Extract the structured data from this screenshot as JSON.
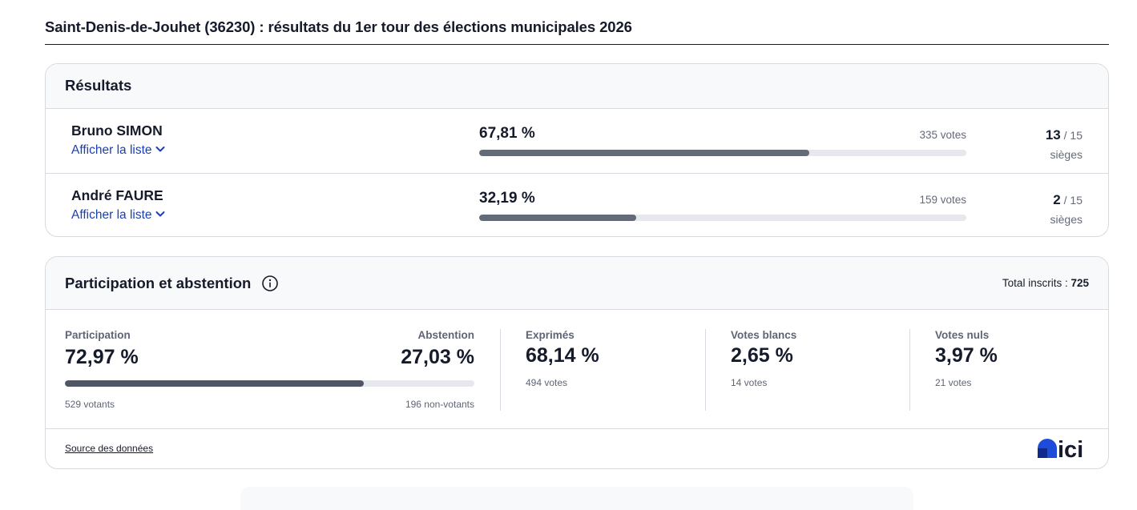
{
  "page": {
    "title": "Saint-Denis-de-Jouhet (36230) : résultats du 1er tour des élections municipales 2026"
  },
  "results": {
    "title": "Résultats",
    "candidates": [
      {
        "name": "Bruno SIMON",
        "link": "Afficher la liste",
        "percent_label": "67,81 %",
        "percent": 67.81,
        "votes": "335 votes",
        "seats": "13",
        "seats_total": "/ 15",
        "seats_label": "sièges"
      },
      {
        "name": "André FAURE",
        "link": "Afficher la liste",
        "percent_label": "32,19 %",
        "percent": 32.19,
        "votes": "159 votes",
        "seats": "2",
        "seats_total": "/ 15",
        "seats_label": "sièges"
      }
    ]
  },
  "participation": {
    "title": "Participation et abstention",
    "total_label": "Total inscrits :",
    "total_value": "725",
    "participation_label": "Participation",
    "participation_value": "72,97 %",
    "participation_percent": 72.97,
    "participation_sub": "529 votants",
    "abstention_label": "Abstention",
    "abstention_value": "27,03 %",
    "abstention_sub": "196 non-votants",
    "stats": [
      {
        "label": "Exprimés",
        "value": "68,14 %",
        "sub": "494 votes"
      },
      {
        "label": "Votes blancs",
        "value": "2,65 %",
        "sub": "14 votes"
      },
      {
        "label": "Votes nuls",
        "value": "3,97 %",
        "sub": "21 votes"
      }
    ],
    "source_link": "Source des données",
    "logo_text": "ici"
  },
  "colors": {
    "bar_fill": "#646b78",
    "bar_track": "#e6e8ed",
    "link": "#1b3fb3",
    "logo_blue": "#1e4bd9"
  }
}
